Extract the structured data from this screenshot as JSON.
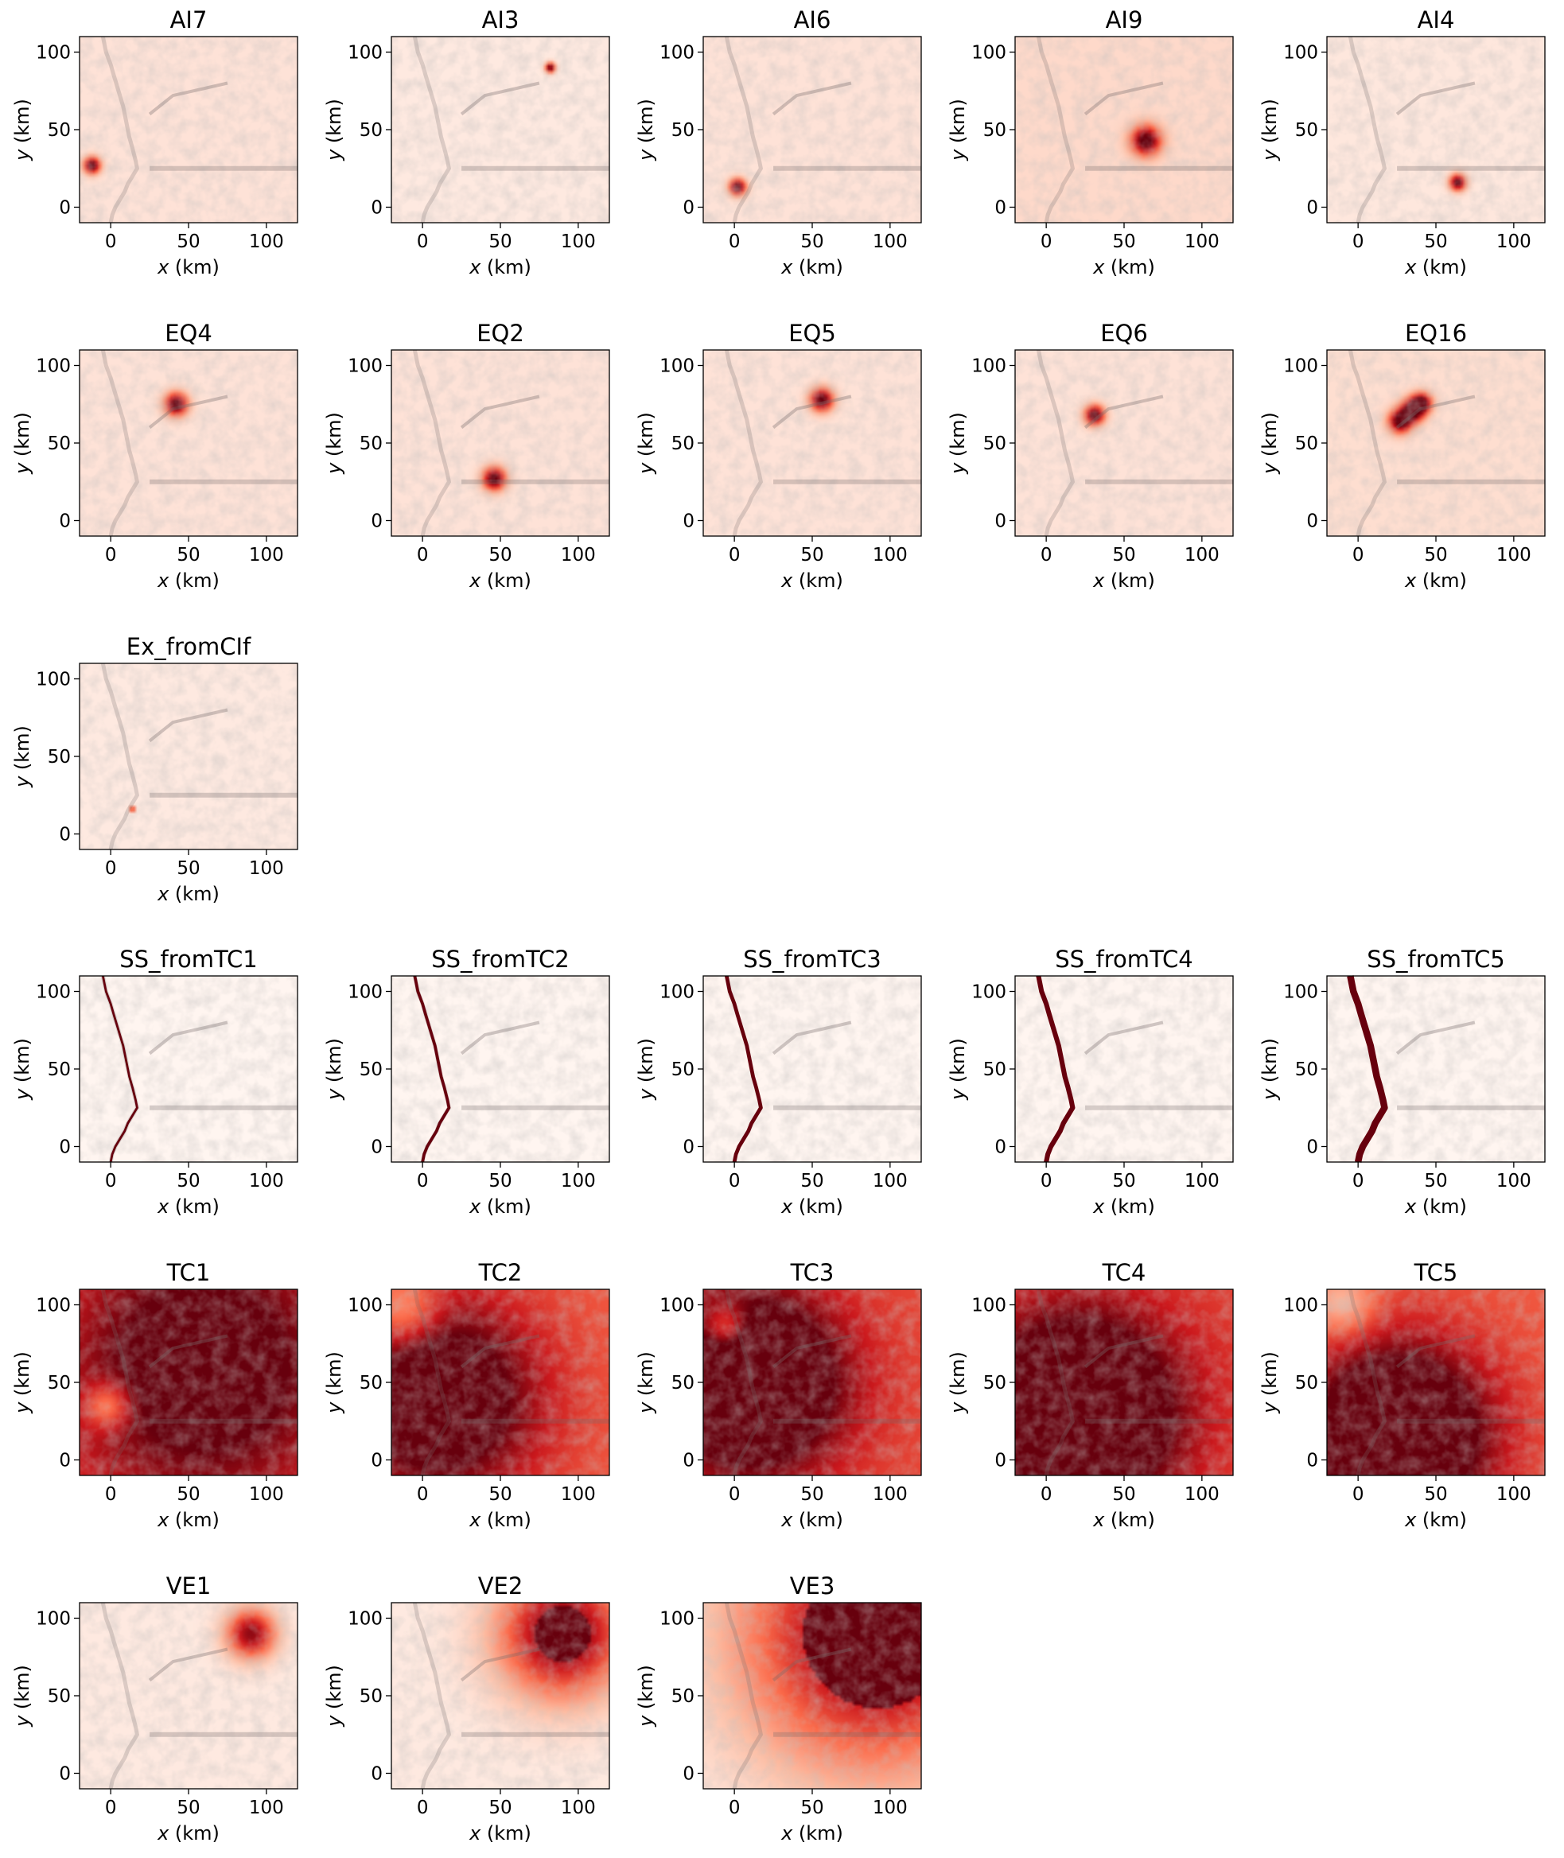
{
  "figure": {
    "background": "#ffffff",
    "colormap": [
      "#fff5f0",
      "#fcbba1",
      "#fb6a4a",
      "#cb181d",
      "#67000d"
    ]
  },
  "chart_data": [
    {
      "type": "heatmap",
      "title": "AI7",
      "xlabel_var": "x",
      "xlabel_unit": " (km)",
      "ylabel_var": "y",
      "ylabel_unit": " (km)",
      "xlim": [
        -20,
        120
      ],
      "ylim": [
        -10,
        110
      ],
      "xticks": [
        0,
        50,
        100
      ],
      "yticks": [
        0,
        50,
        100
      ],
      "base_intensity": 0.08,
      "blobs": [
        {
          "x": -12,
          "y": 27,
          "r": 5,
          "intensity": 1.0
        }
      ]
    },
    {
      "type": "heatmap",
      "title": "AI3",
      "xlabel_var": "x",
      "xlabel_unit": " (km)",
      "ylabel_var": "y",
      "ylabel_unit": " (km)",
      "xlim": [
        -20,
        120
      ],
      "ylim": [
        -10,
        110
      ],
      "xticks": [
        0,
        50,
        100
      ],
      "yticks": [
        0,
        50,
        100
      ],
      "base_intensity": 0.05,
      "blobs": [
        {
          "x": 82,
          "y": 90,
          "r": 3,
          "intensity": 1.0
        }
      ]
    },
    {
      "type": "heatmap",
      "title": "AI6",
      "xlabel_var": "x",
      "xlabel_unit": " (km)",
      "ylabel_var": "y",
      "ylabel_unit": " (km)",
      "xlim": [
        -20,
        120
      ],
      "ylim": [
        -10,
        110
      ],
      "xticks": [
        0,
        50,
        100
      ],
      "yticks": [
        0,
        50,
        100
      ],
      "base_intensity": 0.08,
      "blobs": [
        {
          "x": 2,
          "y": 13,
          "r": 5,
          "intensity": 1.0
        }
      ]
    },
    {
      "type": "heatmap",
      "title": "AI9",
      "xlabel_var": "x",
      "xlabel_unit": " (km)",
      "ylabel_var": "y",
      "ylabel_unit": " (km)",
      "xlim": [
        -20,
        120
      ],
      "ylim": [
        -10,
        110
      ],
      "xticks": [
        0,
        50,
        100
      ],
      "yticks": [
        0,
        50,
        100
      ],
      "base_intensity": 0.12,
      "blobs": [
        {
          "x": 64,
          "y": 43,
          "r": 9,
          "intensity": 1.0
        }
      ]
    },
    {
      "type": "heatmap",
      "title": "AI4",
      "xlabel_var": "x",
      "xlabel_unit": " (km)",
      "ylabel_var": "y",
      "ylabel_unit": " (km)",
      "xlim": [
        -20,
        120
      ],
      "ylim": [
        -10,
        110
      ],
      "xticks": [
        0,
        50,
        100
      ],
      "yticks": [
        0,
        50,
        100
      ],
      "base_intensity": 0.06,
      "blobs": [
        {
          "x": 64,
          "y": 16,
          "r": 5,
          "intensity": 1.0
        }
      ]
    },
    {
      "type": "heatmap",
      "title": "EQ4",
      "xlabel_var": "x",
      "xlabel_unit": " (km)",
      "ylabel_var": "y",
      "ylabel_unit": " (km)",
      "xlim": [
        -20,
        120
      ],
      "ylim": [
        -10,
        110
      ],
      "xticks": [
        0,
        50,
        100
      ],
      "yticks": [
        0,
        50,
        100
      ],
      "base_intensity": 0.08,
      "blobs": [
        {
          "x": 42,
          "y": 75,
          "r": 7,
          "intensity": 1.0
        }
      ]
    },
    {
      "type": "heatmap",
      "title": "EQ2",
      "xlabel_var": "x",
      "xlabel_unit": " (km)",
      "ylabel_var": "y",
      "ylabel_unit": " (km)",
      "xlim": [
        -20,
        120
      ],
      "ylim": [
        -10,
        110
      ],
      "xticks": [
        0,
        50,
        100
      ],
      "yticks": [
        0,
        50,
        100
      ],
      "base_intensity": 0.08,
      "blobs": [
        {
          "x": 46,
          "y": 27,
          "r": 7,
          "intensity": 1.0
        }
      ]
    },
    {
      "type": "heatmap",
      "title": "EQ5",
      "xlabel_var": "x",
      "xlabel_unit": " (km)",
      "ylabel_var": "y",
      "ylabel_unit": " (km)",
      "xlim": [
        -20,
        120
      ],
      "ylim": [
        -10,
        110
      ],
      "xticks": [
        0,
        50,
        100
      ],
      "yticks": [
        0,
        50,
        100
      ],
      "base_intensity": 0.08,
      "blobs": [
        {
          "x": 56,
          "y": 78,
          "r": 7,
          "intensity": 1.0
        }
      ]
    },
    {
      "type": "heatmap",
      "title": "EQ6",
      "xlabel_var": "x",
      "xlabel_unit": " (km)",
      "ylabel_var": "y",
      "ylabel_unit": " (km)",
      "xlim": [
        -20,
        120
      ],
      "ylim": [
        -10,
        110
      ],
      "xticks": [
        0,
        50,
        100
      ],
      "yticks": [
        0,
        50,
        100
      ],
      "base_intensity": 0.08,
      "blobs": [
        {
          "x": 31,
          "y": 68,
          "r": 6,
          "intensity": 1.0
        }
      ]
    },
    {
      "type": "heatmap",
      "title": "EQ16",
      "xlabel_var": "x",
      "xlabel_unit": " (km)",
      "ylabel_var": "y",
      "ylabel_unit": " (km)",
      "xlim": [
        -20,
        120
      ],
      "ylim": [
        -10,
        110
      ],
      "xticks": [
        0,
        50,
        100
      ],
      "yticks": [
        0,
        50,
        100
      ],
      "base_intensity": 0.1,
      "blobs": [
        {
          "x": 27,
          "y": 64,
          "r": 7,
          "intensity": 1.0
        },
        {
          "x": 35,
          "y": 71,
          "r": 7,
          "intensity": 1.0
        },
        {
          "x": 41,
          "y": 76,
          "r": 6,
          "intensity": 0.9
        }
      ]
    },
    {
      "type": "heatmap",
      "title": "Ex_fromCIf",
      "xlabel_var": "x",
      "xlabel_unit": " (km)",
      "ylabel_var": "y",
      "ylabel_unit": " (km)",
      "xlim": [
        -20,
        120
      ],
      "ylim": [
        -10,
        110
      ],
      "xticks": [
        0,
        50,
        100
      ],
      "yticks": [
        0,
        50,
        100
      ],
      "base_intensity": 0.05,
      "blobs": [
        {
          "x": 14,
          "y": 16,
          "r": 1.5,
          "intensity": 1.0
        }
      ]
    },
    {
      "type": "heatmap",
      "title": "SS_fromTC1",
      "xlabel_var": "x",
      "xlabel_unit": " (km)",
      "ylabel_var": "y",
      "ylabel_unit": " (km)",
      "xlim": [
        -20,
        120
      ],
      "ylim": [
        -10,
        110
      ],
      "xticks": [
        0,
        50,
        100
      ],
      "yticks": [
        0,
        50,
        100
      ],
      "base_intensity": 0.0,
      "coast_width_km": 1.2,
      "blobs": []
    },
    {
      "type": "heatmap",
      "title": "SS_fromTC2",
      "xlabel_var": "x",
      "xlabel_unit": " (km)",
      "ylabel_var": "y",
      "ylabel_unit": " (km)",
      "xlim": [
        -20,
        120
      ],
      "ylim": [
        -10,
        110
      ],
      "xticks": [
        0,
        50,
        100
      ],
      "yticks": [
        0,
        50,
        100
      ],
      "base_intensity": 0.0,
      "coast_width_km": 1.6,
      "blobs": []
    },
    {
      "type": "heatmap",
      "title": "SS_fromTC3",
      "xlabel_var": "x",
      "xlabel_unit": " (km)",
      "ylabel_var": "y",
      "ylabel_unit": " (km)",
      "xlim": [
        -20,
        120
      ],
      "ylim": [
        -10,
        110
      ],
      "xticks": [
        0,
        50,
        100
      ],
      "yticks": [
        0,
        50,
        100
      ],
      "base_intensity": 0.0,
      "coast_width_km": 2.0,
      "blobs": []
    },
    {
      "type": "heatmap",
      "title": "SS_fromTC4",
      "xlabel_var": "x",
      "xlabel_unit": " (km)",
      "ylabel_var": "y",
      "ylabel_unit": " (km)",
      "xlim": [
        -20,
        120
      ],
      "ylim": [
        -10,
        110
      ],
      "xticks": [
        0,
        50,
        100
      ],
      "yticks": [
        0,
        50,
        100
      ],
      "base_intensity": 0.0,
      "coast_width_km": 2.6,
      "blobs": []
    },
    {
      "type": "heatmap",
      "title": "SS_fromTC5",
      "xlabel_var": "x",
      "xlabel_unit": " (km)",
      "ylabel_var": "y",
      "ylabel_unit": " (km)",
      "xlim": [
        -20,
        120
      ],
      "ylim": [
        -10,
        110
      ],
      "xticks": [
        0,
        50,
        100
      ],
      "yticks": [
        0,
        50,
        100
      ],
      "base_intensity": 0.0,
      "coast_width_km": 3.6,
      "blobs": []
    },
    {
      "type": "heatmap",
      "title": "TC1",
      "xlabel_var": "x",
      "xlabel_unit": " (km)",
      "ylabel_var": "y",
      "ylabel_unit": " (km)",
      "xlim": [
        -20,
        120
      ],
      "ylim": [
        -10,
        110
      ],
      "xticks": [
        0,
        50,
        100
      ],
      "yticks": [
        0,
        50,
        100
      ],
      "base_intensity": 0.55,
      "blobs": [
        {
          "x": 60,
          "y": 60,
          "r": 90,
          "intensity": 0.62
        },
        {
          "x": -2,
          "y": 35,
          "r": 14,
          "intensity": -0.45
        }
      ]
    },
    {
      "type": "heatmap",
      "title": "TC2",
      "xlabel_var": "x",
      "xlabel_unit": " (km)",
      "ylabel_var": "y",
      "ylabel_unit": " (km)",
      "xlim": [
        -20,
        120
      ],
      "ylim": [
        -10,
        110
      ],
      "xticks": [
        0,
        50,
        100
      ],
      "yticks": [
        0,
        50,
        100
      ],
      "base_intensity": 0.55,
      "blobs": [
        {
          "x": 10,
          "y": 40,
          "r": 60,
          "intensity": 0.75
        },
        {
          "x": -12,
          "y": 95,
          "r": 22,
          "intensity": -0.4
        }
      ]
    },
    {
      "type": "heatmap",
      "title": "TC3",
      "xlabel_var": "x",
      "xlabel_unit": " (km)",
      "ylabel_var": "y",
      "ylabel_unit": " (km)",
      "xlim": [
        -20,
        120
      ],
      "ylim": [
        -10,
        110
      ],
      "xticks": [
        0,
        50,
        100
      ],
      "yticks": [
        0,
        50,
        100
      ],
      "base_intensity": 0.6,
      "blobs": [
        {
          "x": 10,
          "y": 50,
          "r": 55,
          "intensity": 0.95
        },
        {
          "x": -5,
          "y": 85,
          "r": 14,
          "intensity": -0.5
        }
      ]
    },
    {
      "type": "heatmap",
      "title": "TC4",
      "xlabel_var": "x",
      "xlabel_unit": " (km)",
      "ylabel_var": "y",
      "ylabel_unit": " (km)",
      "xlim": [
        -20,
        120
      ],
      "ylim": [
        -10,
        110
      ],
      "xticks": [
        0,
        50,
        100
      ],
      "yticks": [
        0,
        50,
        100
      ],
      "base_intensity": 0.62,
      "blobs": [
        {
          "x": 20,
          "y": 30,
          "r": 60,
          "intensity": 0.95
        }
      ]
    },
    {
      "type": "heatmap",
      "title": "TC5",
      "xlabel_var": "x",
      "xlabel_unit": " (km)",
      "ylabel_var": "y",
      "ylabel_unit": " (km)",
      "xlim": [
        -20,
        120
      ],
      "ylim": [
        -10,
        110
      ],
      "xticks": [
        0,
        50,
        100
      ],
      "yticks": [
        0,
        50,
        100
      ],
      "base_intensity": 0.55,
      "blobs": [
        {
          "x": 25,
          "y": 15,
          "r": 55,
          "intensity": 1.0
        },
        {
          "x": -10,
          "y": 100,
          "r": 20,
          "intensity": -0.35
        }
      ]
    },
    {
      "type": "heatmap",
      "title": "VE1",
      "xlabel_var": "x",
      "xlabel_unit": " (km)",
      "ylabel_var": "y",
      "ylabel_unit": " (km)",
      "xlim": [
        -20,
        120
      ],
      "ylim": [
        -10,
        110
      ],
      "xticks": [
        0,
        50,
        100
      ],
      "yticks": [
        0,
        50,
        100
      ],
      "base_intensity": 0.05,
      "blobs": [
        {
          "x": 90,
          "y": 90,
          "r": 15,
          "intensity": 0.85
        }
      ]
    },
    {
      "type": "heatmap",
      "title": "VE2",
      "xlabel_var": "x",
      "xlabel_unit": " (km)",
      "ylabel_var": "y",
      "ylabel_unit": " (km)",
      "xlim": [
        -20,
        120
      ],
      "ylim": [
        -10,
        110
      ],
      "xticks": [
        0,
        50,
        100
      ],
      "yticks": [
        0,
        50,
        100
      ],
      "base_intensity": 0.05,
      "core": {
        "x": 90,
        "y": 90,
        "r": 18
      },
      "blobs": [
        {
          "x": 90,
          "y": 90,
          "r": 38,
          "intensity": 0.95
        }
      ]
    },
    {
      "type": "heatmap",
      "title": "VE3",
      "xlabel_var": "x",
      "xlabel_unit": " (km)",
      "ylabel_var": "y",
      "ylabel_unit": " (km)",
      "xlim": [
        -20,
        120
      ],
      "ylim": [
        -10,
        110
      ],
      "xticks": [
        0,
        50,
        100
      ],
      "yticks": [
        0,
        50,
        100
      ],
      "base_intensity": 0.05,
      "core": {
        "x": 92,
        "y": 90,
        "r": 48
      },
      "blobs": [
        {
          "x": 92,
          "y": 90,
          "r": 80,
          "intensity": 0.95
        }
      ]
    }
  ]
}
